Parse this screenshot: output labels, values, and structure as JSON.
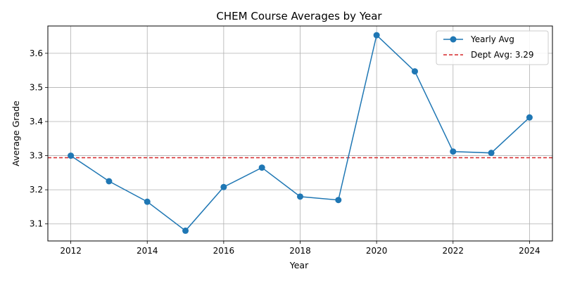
{
  "chart_data": {
    "type": "line",
    "title": "CHEM Course Averages by Year",
    "xlabel": "Year",
    "ylabel": "Average Grade",
    "xlim": [
      2011.4,
      2024.6
    ],
    "ylim": [
      3.05,
      3.68
    ],
    "xticks": [
      2012,
      2014,
      2016,
      2018,
      2020,
      2022,
      2024
    ],
    "yticks": [
      3.1,
      3.2,
      3.3,
      3.4,
      3.5,
      3.6
    ],
    "ytick_labels": [
      "3.1",
      "3.2",
      "3.3",
      "3.4",
      "3.5",
      "3.6"
    ],
    "grid": true,
    "legend_position": "top-right",
    "series": [
      {
        "name": "Yearly Avg",
        "color": "#1f77b4",
        "marker": "circle",
        "x": [
          2012,
          2013,
          2014,
          2015,
          2016,
          2017,
          2018,
          2019,
          2020,
          2021,
          2022,
          2023,
          2024
        ],
        "y": [
          3.3,
          3.225,
          3.165,
          3.08,
          3.208,
          3.265,
          3.18,
          3.17,
          3.653,
          3.547,
          3.312,
          3.308,
          3.412
        ]
      }
    ],
    "reference_line": {
      "name": "Dept Avg: 3.29",
      "value": 3.294,
      "color": "#d62728",
      "style": "dashed"
    }
  }
}
